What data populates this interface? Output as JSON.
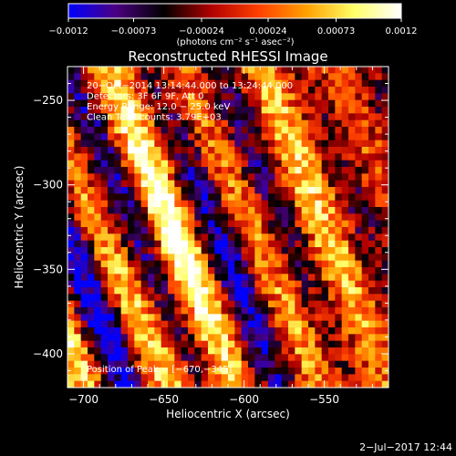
{
  "chart_data": {
    "type": "heatmap",
    "title": "Reconstructed RHESSI Image",
    "xlabel": "Heliocentric X (arcsec)",
    "ylabel": "Heliocentric Y (arcsec)",
    "xlim": [
      -710,
      -510
    ],
    "ylim": [
      -420,
      -230
    ],
    "x_ticks": [
      -700,
      -650,
      -600,
      -550
    ],
    "y_ticks": [
      -250,
      -300,
      -350,
      -400
    ],
    "colorbar": {
      "range": [
        -0.0012,
        0.0012
      ],
      "ticks": [
        {
          "value": -0.0012,
          "label": "−0.0012"
        },
        {
          "value": -0.00073,
          "label": "−0.00073"
        },
        {
          "value": -0.00024,
          "label": "−0.00024"
        },
        {
          "value": 0.00024,
          "label": "0.00024"
        },
        {
          "value": 0.00073,
          "label": "0.00073"
        },
        {
          "value": 0.0012,
          "label": "0.0012"
        }
      ],
      "label": "(photons cm⁻² s⁻¹ asec⁻²)",
      "colormap": [
        "#0000ff",
        "#4b0082",
        "#000000",
        "#b00000",
        "#ff4000",
        "#ffa000",
        "#ffff66",
        "#ffffff"
      ]
    },
    "annotations": [
      "20−Oct−2014 13:14:44.000 to 13:24:44.000",
      "Detectors: 3F 6F 9F, Att 0",
      "Energy Range: 12.0 − 25.0 keV",
      "Clean    Total counts: 3.79E+03"
    ],
    "peak_label": "Position of Peak = [−670,−345]",
    "peak": {
      "x": -670,
      "y": -345
    }
  },
  "footer": {
    "date": "2−Jul−2017 12:44"
  }
}
